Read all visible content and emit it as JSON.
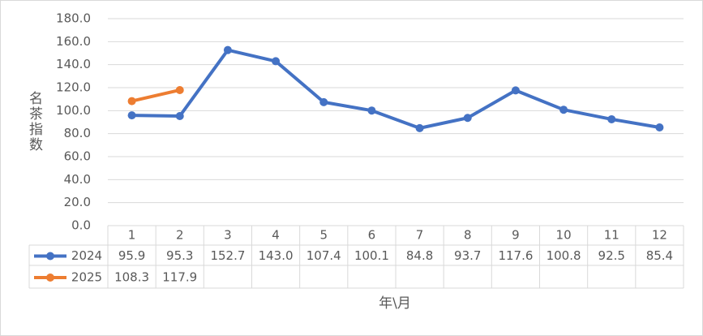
{
  "chart_data": {
    "type": "line",
    "y_axis_label": "名茶指数",
    "x_axis_label": "年\\月",
    "categories": [
      "1",
      "2",
      "3",
      "4",
      "5",
      "6",
      "7",
      "8",
      "9",
      "10",
      "11",
      "12"
    ],
    "series": [
      {
        "name": "2024",
        "color": "#4472c4",
        "values": [
          95.9,
          95.3,
          152.7,
          143.0,
          107.4,
          100.1,
          84.8,
          93.7,
          117.6,
          100.8,
          92.5,
          85.4
        ],
        "value_labels": [
          "95.9",
          "95.3",
          "152.7",
          "143.0",
          "107.4",
          "100.1",
          "84.8",
          "93.7",
          "117.6",
          "100.8",
          "92.5",
          "85.4"
        ]
      },
      {
        "name": "2025",
        "color": "#ed7d31",
        "values": [
          108.3,
          117.9,
          null,
          null,
          null,
          null,
          null,
          null,
          null,
          null,
          null,
          null
        ],
        "value_labels": [
          "108.3",
          "117.9",
          null,
          null,
          null,
          null,
          null,
          null,
          null,
          null,
          null,
          null
        ]
      }
    ],
    "ylim": [
      0,
      180
    ],
    "yticks": [
      {
        "value": 0,
        "label": "0.0"
      },
      {
        "value": 20,
        "label": "20.0"
      },
      {
        "value": 40,
        "label": "40.0"
      },
      {
        "value": 60,
        "label": "60.0"
      },
      {
        "value": 80,
        "label": "80.0"
      },
      {
        "value": 100,
        "label": "100.0"
      },
      {
        "value": 120,
        "label": "120.0"
      },
      {
        "value": 140,
        "label": "140.0"
      },
      {
        "value": 160,
        "label": "160.0"
      },
      {
        "value": 180,
        "label": "180.0"
      }
    ],
    "grid": true,
    "data_table": true
  }
}
